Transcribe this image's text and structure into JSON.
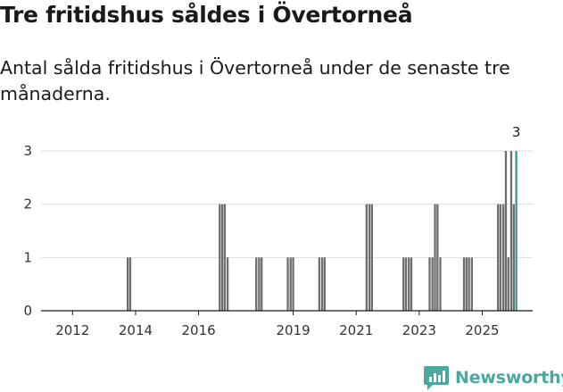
{
  "header": {
    "title": "Tre fritidshus såldes i Övertorneå",
    "subtitle": "Antal sålda fritidshus i Övertorneå under de senaste tre månaderna."
  },
  "brand": {
    "name": "Newsworthy",
    "icon": "newsworthy-logo-icon",
    "color": "#4ba89e"
  },
  "colors": {
    "bar": "#6e6e6e",
    "highlight": "#2a9d8f",
    "grid": "#dddddd",
    "axis": "#1a1a1a"
  },
  "chart_data": {
    "type": "bar",
    "title": "Tre fritidshus såldes i Övertorneå",
    "subtitle": "Antal sålda fritidshus i Övertorneå under de senaste tre månaderna.",
    "xlabel": "",
    "ylabel": "",
    "x_unit": "rolling three-month period (end date, decimal year)",
    "xlim": [
      2011.0,
      2026.6
    ],
    "ylim": [
      0,
      3
    ],
    "yticks": [
      0,
      1,
      2,
      3
    ],
    "xticks": [
      "2012",
      "2014",
      "2016",
      "2019",
      "2021",
      "2023",
      "2025"
    ],
    "xtick_values": [
      2012,
      2014,
      2016,
      2019,
      2021,
      2023,
      2025
    ],
    "grid": true,
    "highlight_label": "3",
    "points": [
      {
        "x": 2013.75,
        "y": 1
      },
      {
        "x": 2013.83,
        "y": 1
      },
      {
        "x": 2016.67,
        "y": 2
      },
      {
        "x": 2016.75,
        "y": 2
      },
      {
        "x": 2016.83,
        "y": 2
      },
      {
        "x": 2016.92,
        "y": 1
      },
      {
        "x": 2017.83,
        "y": 1
      },
      {
        "x": 2017.92,
        "y": 1
      },
      {
        "x": 2018.0,
        "y": 1
      },
      {
        "x": 2018.83,
        "y": 1
      },
      {
        "x": 2018.92,
        "y": 1
      },
      {
        "x": 2019.0,
        "y": 1
      },
      {
        "x": 2019.83,
        "y": 1
      },
      {
        "x": 2019.92,
        "y": 1
      },
      {
        "x": 2020.0,
        "y": 1
      },
      {
        "x": 2021.33,
        "y": 2
      },
      {
        "x": 2021.42,
        "y": 2
      },
      {
        "x": 2021.5,
        "y": 2
      },
      {
        "x": 2022.5,
        "y": 1
      },
      {
        "x": 2022.58,
        "y": 1
      },
      {
        "x": 2022.67,
        "y": 1
      },
      {
        "x": 2022.75,
        "y": 1
      },
      {
        "x": 2023.33,
        "y": 1
      },
      {
        "x": 2023.42,
        "y": 1
      },
      {
        "x": 2023.5,
        "y": 2
      },
      {
        "x": 2023.58,
        "y": 2
      },
      {
        "x": 2023.67,
        "y": 1
      },
      {
        "x": 2024.42,
        "y": 1
      },
      {
        "x": 2024.5,
        "y": 1
      },
      {
        "x": 2024.58,
        "y": 1
      },
      {
        "x": 2024.67,
        "y": 1
      },
      {
        "x": 2025.5,
        "y": 2
      },
      {
        "x": 2025.58,
        "y": 2
      },
      {
        "x": 2025.67,
        "y": 2
      },
      {
        "x": 2025.75,
        "y": 3
      },
      {
        "x": 2025.83,
        "y": 1
      },
      {
        "x": 2025.92,
        "y": 3
      },
      {
        "x": 2026.0,
        "y": 2
      },
      {
        "x": 2026.08,
        "y": 3,
        "highlight": true
      }
    ]
  }
}
